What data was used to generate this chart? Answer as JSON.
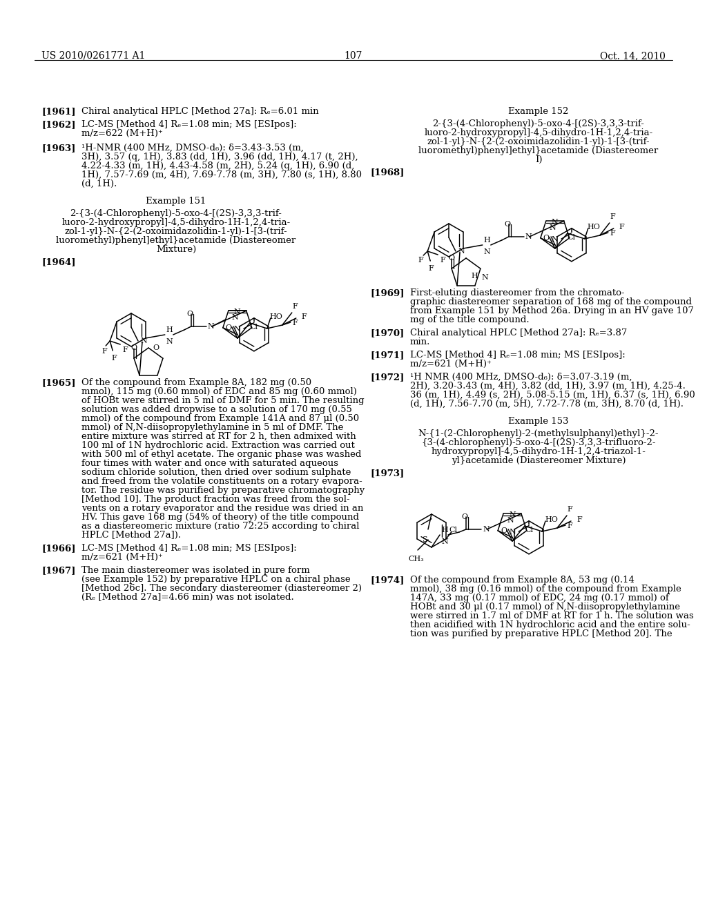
{
  "page_number": "107",
  "header_left": "US 2010/0261771 A1",
  "header_right": "Oct. 14, 2010",
  "background_color": "#ffffff"
}
